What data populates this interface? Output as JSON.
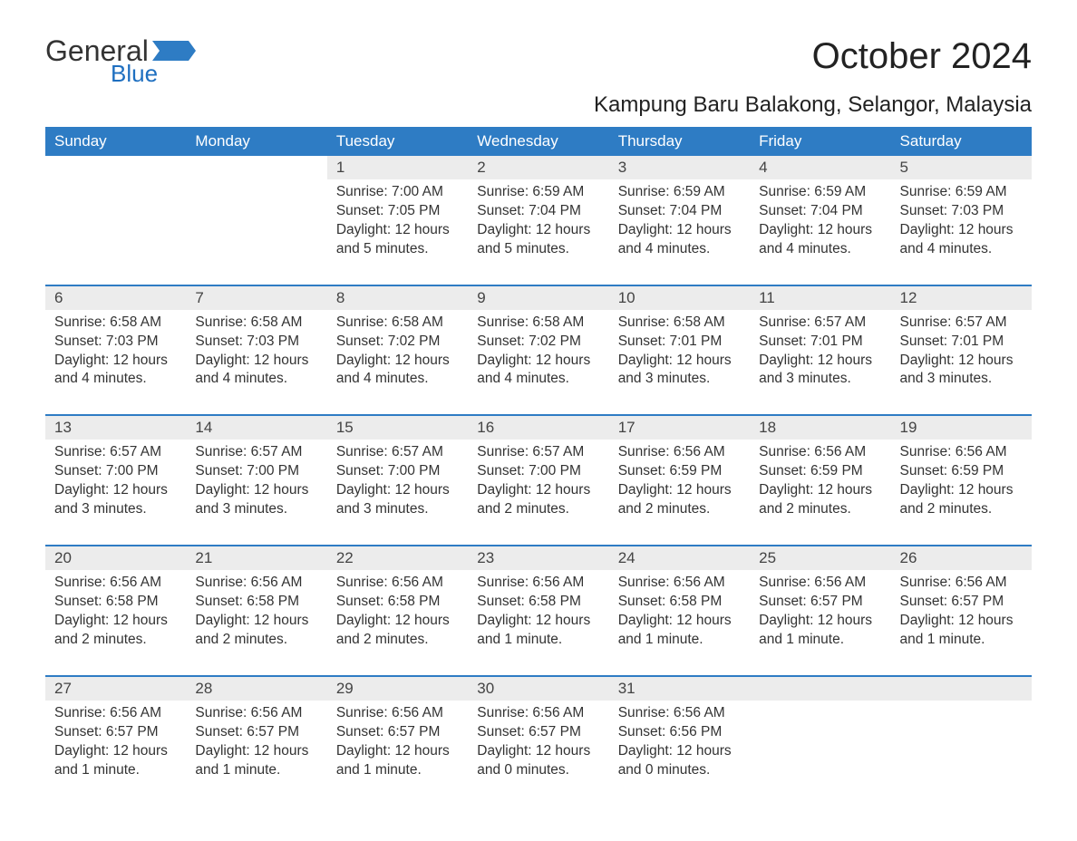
{
  "logo": {
    "general": "General",
    "blue": "Blue"
  },
  "title": "October 2024",
  "subtitle": "Kampung Baru Balakong, Selangor, Malaysia",
  "colors": {
    "header_bg": "#2e7cc4",
    "header_text": "#ffffff",
    "daynum_bg": "#ececec",
    "text": "#333333",
    "logo_blue": "#1e6fc0",
    "flag_blue": "#2e7cc4"
  },
  "day_names": [
    "Sunday",
    "Monday",
    "Tuesday",
    "Wednesday",
    "Thursday",
    "Friday",
    "Saturday"
  ],
  "weeks": [
    [
      null,
      null,
      {
        "n": "1",
        "sr": "7:00 AM",
        "ss": "7:05 PM",
        "dl": "12 hours and 5 minutes."
      },
      {
        "n": "2",
        "sr": "6:59 AM",
        "ss": "7:04 PM",
        "dl": "12 hours and 5 minutes."
      },
      {
        "n": "3",
        "sr": "6:59 AM",
        "ss": "7:04 PM",
        "dl": "12 hours and 4 minutes."
      },
      {
        "n": "4",
        "sr": "6:59 AM",
        "ss": "7:04 PM",
        "dl": "12 hours and 4 minutes."
      },
      {
        "n": "5",
        "sr": "6:59 AM",
        "ss": "7:03 PM",
        "dl": "12 hours and 4 minutes."
      }
    ],
    [
      {
        "n": "6",
        "sr": "6:58 AM",
        "ss": "7:03 PM",
        "dl": "12 hours and 4 minutes."
      },
      {
        "n": "7",
        "sr": "6:58 AM",
        "ss": "7:03 PM",
        "dl": "12 hours and 4 minutes."
      },
      {
        "n": "8",
        "sr": "6:58 AM",
        "ss": "7:02 PM",
        "dl": "12 hours and 4 minutes."
      },
      {
        "n": "9",
        "sr": "6:58 AM",
        "ss": "7:02 PM",
        "dl": "12 hours and 4 minutes."
      },
      {
        "n": "10",
        "sr": "6:58 AM",
        "ss": "7:01 PM",
        "dl": "12 hours and 3 minutes."
      },
      {
        "n": "11",
        "sr": "6:57 AM",
        "ss": "7:01 PM",
        "dl": "12 hours and 3 minutes."
      },
      {
        "n": "12",
        "sr": "6:57 AM",
        "ss": "7:01 PM",
        "dl": "12 hours and 3 minutes."
      }
    ],
    [
      {
        "n": "13",
        "sr": "6:57 AM",
        "ss": "7:00 PM",
        "dl": "12 hours and 3 minutes."
      },
      {
        "n": "14",
        "sr": "6:57 AM",
        "ss": "7:00 PM",
        "dl": "12 hours and 3 minutes."
      },
      {
        "n": "15",
        "sr": "6:57 AM",
        "ss": "7:00 PM",
        "dl": "12 hours and 3 minutes."
      },
      {
        "n": "16",
        "sr": "6:57 AM",
        "ss": "7:00 PM",
        "dl": "12 hours and 2 minutes."
      },
      {
        "n": "17",
        "sr": "6:56 AM",
        "ss": "6:59 PM",
        "dl": "12 hours and 2 minutes."
      },
      {
        "n": "18",
        "sr": "6:56 AM",
        "ss": "6:59 PM",
        "dl": "12 hours and 2 minutes."
      },
      {
        "n": "19",
        "sr": "6:56 AM",
        "ss": "6:59 PM",
        "dl": "12 hours and 2 minutes."
      }
    ],
    [
      {
        "n": "20",
        "sr": "6:56 AM",
        "ss": "6:58 PM",
        "dl": "12 hours and 2 minutes."
      },
      {
        "n": "21",
        "sr": "6:56 AM",
        "ss": "6:58 PM",
        "dl": "12 hours and 2 minutes."
      },
      {
        "n": "22",
        "sr": "6:56 AM",
        "ss": "6:58 PM",
        "dl": "12 hours and 2 minutes."
      },
      {
        "n": "23",
        "sr": "6:56 AM",
        "ss": "6:58 PM",
        "dl": "12 hours and 1 minute."
      },
      {
        "n": "24",
        "sr": "6:56 AM",
        "ss": "6:58 PM",
        "dl": "12 hours and 1 minute."
      },
      {
        "n": "25",
        "sr": "6:56 AM",
        "ss": "6:57 PM",
        "dl": "12 hours and 1 minute."
      },
      {
        "n": "26",
        "sr": "6:56 AM",
        "ss": "6:57 PM",
        "dl": "12 hours and 1 minute."
      }
    ],
    [
      {
        "n": "27",
        "sr": "6:56 AM",
        "ss": "6:57 PM",
        "dl": "12 hours and 1 minute."
      },
      {
        "n": "28",
        "sr": "6:56 AM",
        "ss": "6:57 PM",
        "dl": "12 hours and 1 minute."
      },
      {
        "n": "29",
        "sr": "6:56 AM",
        "ss": "6:57 PM",
        "dl": "12 hours and 1 minute."
      },
      {
        "n": "30",
        "sr": "6:56 AM",
        "ss": "6:57 PM",
        "dl": "12 hours and 0 minutes."
      },
      {
        "n": "31",
        "sr": "6:56 AM",
        "ss": "6:56 PM",
        "dl": "12 hours and 0 minutes."
      },
      null,
      null
    ]
  ],
  "labels": {
    "sunrise": "Sunrise: ",
    "sunset": "Sunset: ",
    "daylight": "Daylight: "
  }
}
